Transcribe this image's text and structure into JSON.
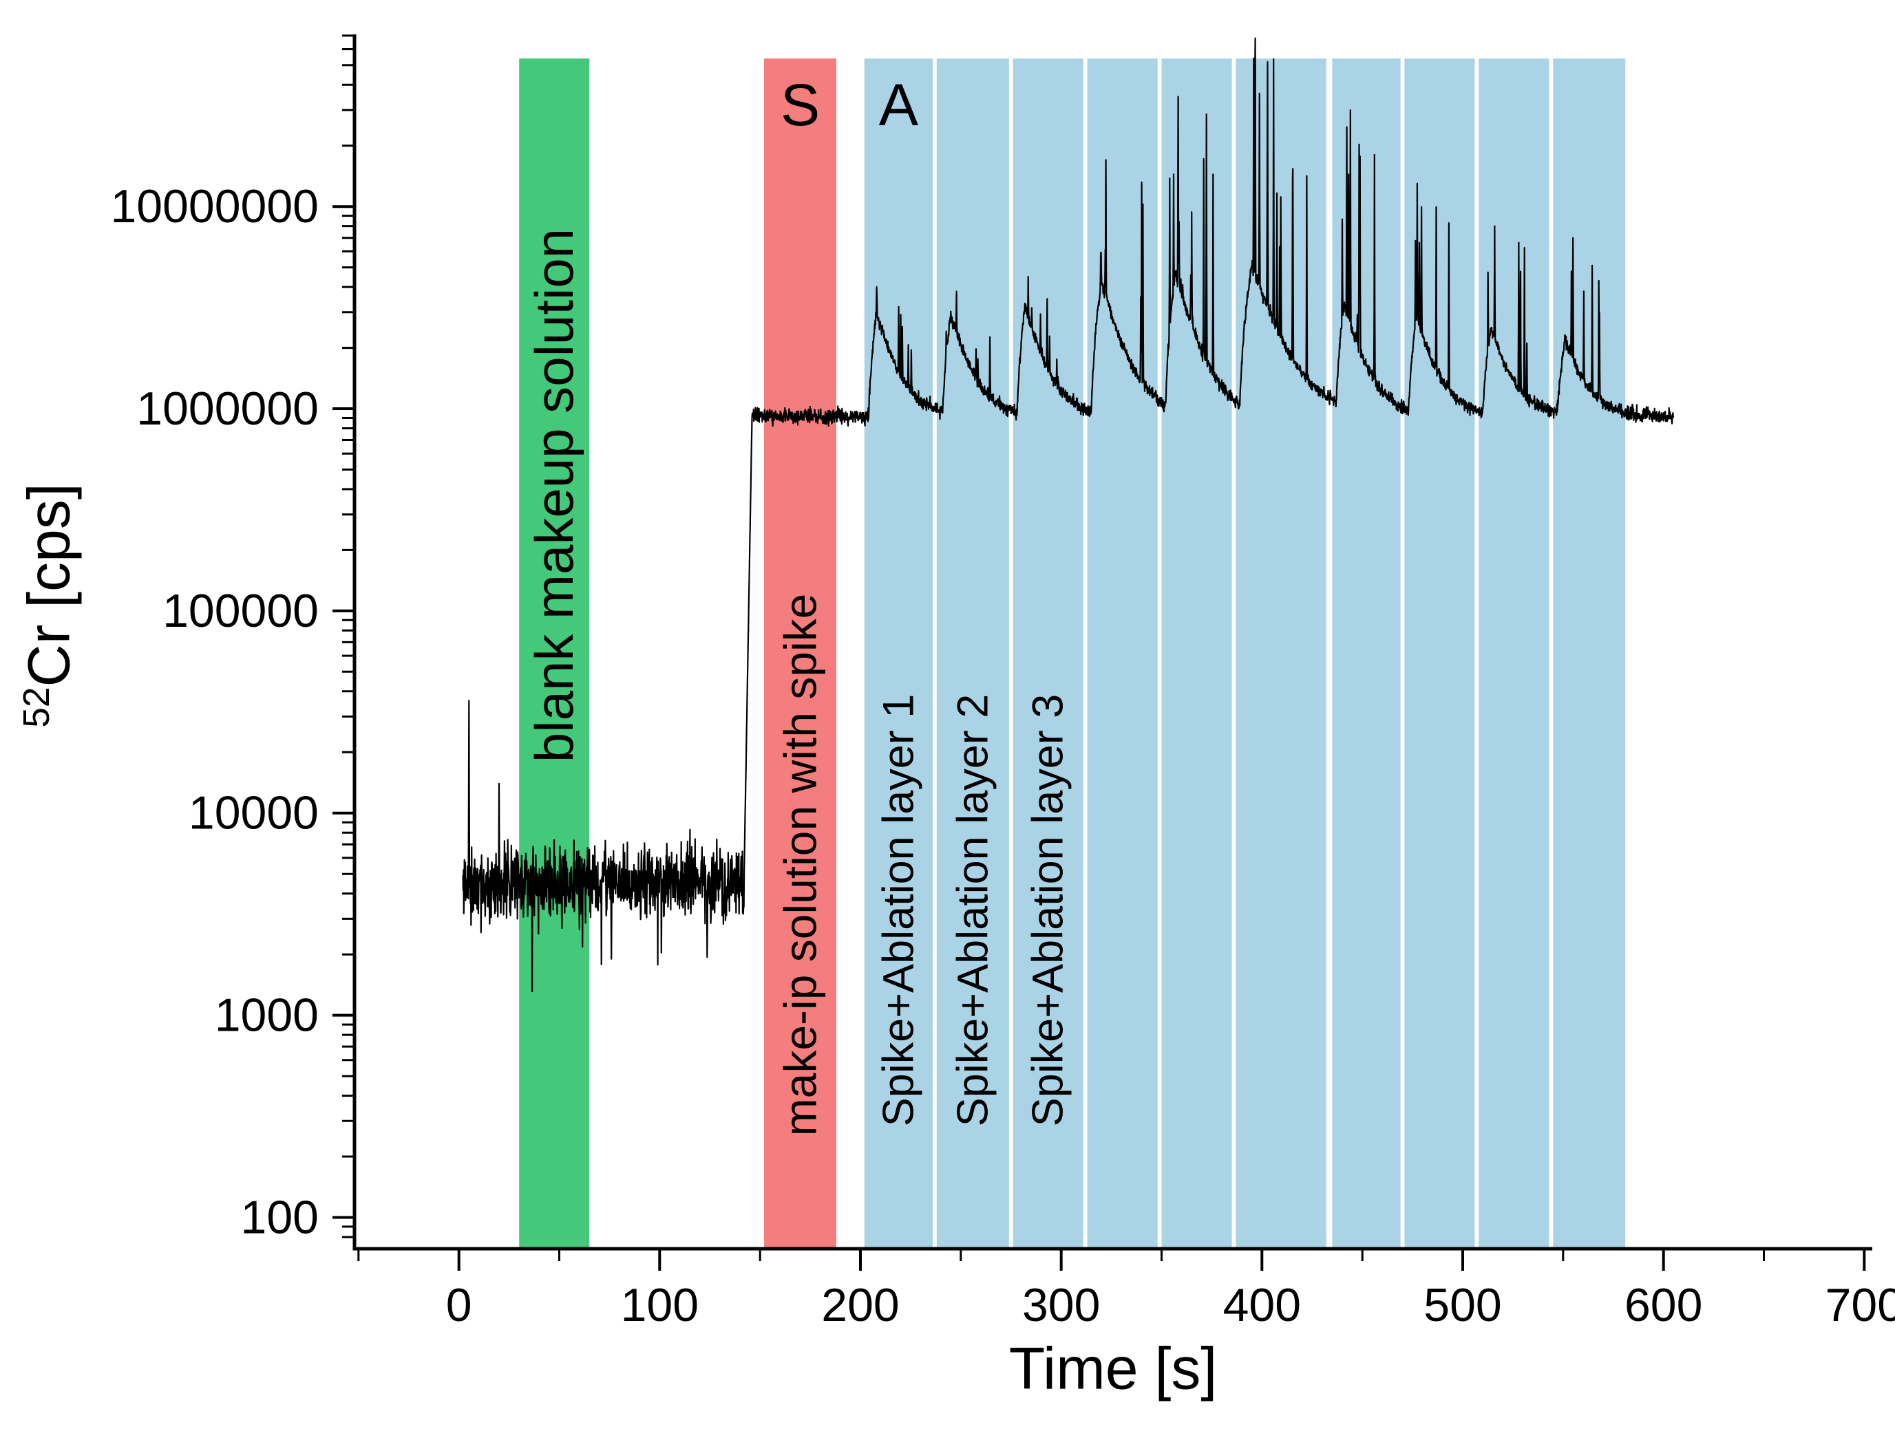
{
  "figure": {
    "background": "#ffffff",
    "trace_color": "#000000",
    "axis_color": "#000000"
  },
  "chart_data": {
    "type": "line",
    "title": "",
    "xlabel": "Time [s]",
    "ylabel": {
      "superscript": "52",
      "text": "Cr [cps]"
    },
    "y_scale": "log",
    "grid": false,
    "legend": null,
    "xlim": [
      -52,
      704
    ],
    "ylim": [
      70,
      71000000
    ],
    "x_ticks": [
      0,
      100,
      200,
      300,
      400,
      500,
      600,
      700
    ],
    "x_minor_step": 50,
    "y_ticks": [
      100,
      1000,
      10000,
      100000,
      1000000,
      10000000
    ],
    "regions": [
      {
        "id": "blank",
        "label": "blank makeup solution",
        "top_label": "",
        "start": 30,
        "end": 65,
        "color": "#44c879"
      },
      {
        "id": "spike-solution",
        "label": "make-ip solution with spike",
        "top_label": "S",
        "start": 152,
        "end": 188,
        "color": "#f47e7e"
      },
      {
        "id": "ablation-1",
        "label": "Spike+Ablation layer 1",
        "top_label": "A",
        "start": 202,
        "end": 236,
        "color": "#abd3e6"
      },
      {
        "id": "ablation-2",
        "label": "Spike+Ablation layer 2",
        "top_label": "",
        "start": 238,
        "end": 274,
        "color": "#abd3e6"
      },
      {
        "id": "ablation-3",
        "label": "Spike+Ablation layer 3",
        "top_label": "",
        "start": 276,
        "end": 311,
        "color": "#abd3e6"
      },
      {
        "id": "ablation-4",
        "label": "",
        "top_label": "",
        "start": 313,
        "end": 348,
        "color": "#abd3e6"
      },
      {
        "id": "ablation-5",
        "label": "",
        "top_label": "",
        "start": 350,
        "end": 385,
        "color": "#abd3e6"
      },
      {
        "id": "ablation-6",
        "label": "",
        "top_label": "",
        "start": 387,
        "end": 432,
        "color": "#abd3e6"
      },
      {
        "id": "ablation-7",
        "label": "",
        "top_label": "",
        "start": 435,
        "end": 469,
        "color": "#abd3e6"
      },
      {
        "id": "ablation-8",
        "label": "",
        "top_label": "",
        "start": 471,
        "end": 506,
        "color": "#abd3e6"
      },
      {
        "id": "ablation-9",
        "label": "",
        "top_label": "",
        "start": 508,
        "end": 543,
        "color": "#abd3e6"
      },
      {
        "id": "ablation-10",
        "label": "",
        "top_label": "",
        "start": 545,
        "end": 581,
        "color": "#abd3e6"
      }
    ],
    "signal": {
      "seed": 11,
      "start_time": 2,
      "end_time": 605,
      "sample_dt": 0.15,
      "baseline_cps": 4500,
      "baseline_range": [
        3000,
        6800
      ],
      "baseline_spikes": [
        {
          "t": 5,
          "value": 36000
        },
        {
          "t": 20,
          "value": 14000
        }
      ],
      "baseline_dips": [
        {
          "t": 76,
          "value": 1900
        }
      ],
      "step_time": 142,
      "step_duration": 4,
      "plateau_cps": 920000,
      "plateau_range": [
        840000,
        1000000
      ],
      "ablation_peaks": [
        {
          "start": 204,
          "peak": 3000000,
          "spike_max": 4000000,
          "rise": 4,
          "decay_tau": 9
        },
        {
          "start": 241,
          "peak": 2900000,
          "spike_max": 3800000,
          "rise": 4,
          "decay_tau": 9
        },
        {
          "start": 278,
          "peak": 3200000,
          "spike_max": 4500000,
          "rise": 4,
          "decay_tau": 9
        },
        {
          "start": 315,
          "peak": 4200000,
          "spike_max": 17000000,
          "rise": 5,
          "decay_tau": 10
        },
        {
          "start": 352,
          "peak": 4600000,
          "spike_max": 35000000,
          "rise": 5,
          "decay_tau": 10
        },
        {
          "start": 389,
          "peak": 5000000,
          "spike_max": 68000000,
          "rise": 6,
          "decay_tau": 13
        },
        {
          "start": 437,
          "peak": 3200000,
          "spike_max": 30000000,
          "rise": 4,
          "decay_tau": 9
        },
        {
          "start": 473,
          "peak": 2800000,
          "spike_max": 13000000,
          "rise": 4,
          "decay_tau": 9
        },
        {
          "start": 510,
          "peak": 2500000,
          "spike_max": 8000000,
          "rise": 4,
          "decay_tau": 9
        },
        {
          "start": 547,
          "peak": 2200000,
          "spike_max": 7000000,
          "rise": 4,
          "decay_tau": 9
        }
      ]
    }
  }
}
